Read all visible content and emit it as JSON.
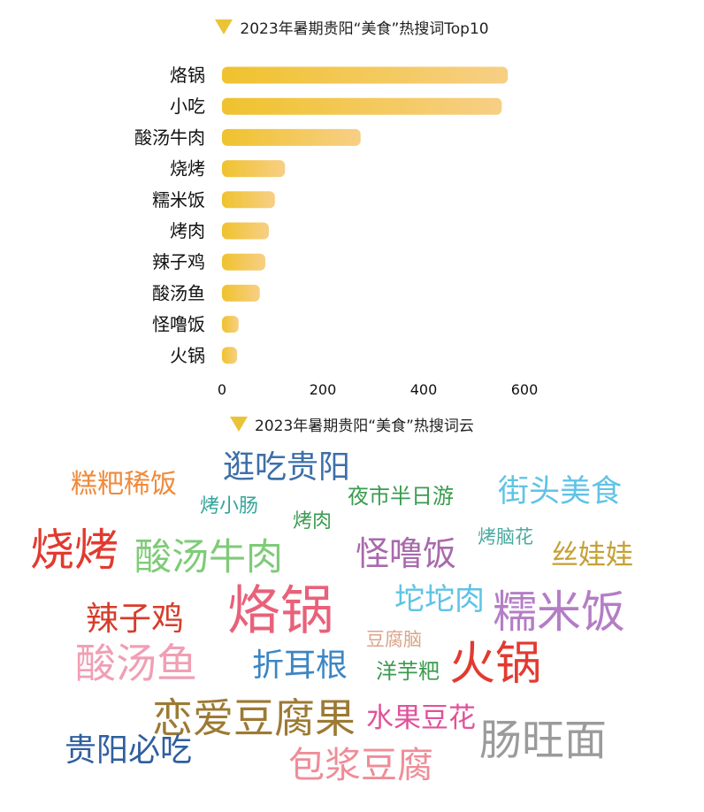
{
  "chart_data": [
    {
      "type": "bar",
      "orientation": "horizontal",
      "title": "2023年暑期贵阳“美食”热搜词Top10",
      "categories": [
        "烙锅",
        "小吃",
        "酸汤牛肉",
        "烧烤",
        "糯米饭",
        "烤肉",
        "辣子鸡",
        "酸汤鱼",
        "怪噜饭",
        "火锅"
      ],
      "values": [
        567,
        555,
        275,
        125,
        105,
        93,
        86,
        75,
        33,
        30
      ],
      "xlim": [
        0,
        600
      ],
      "xticks": [
        0,
        200,
        400,
        600
      ],
      "grid": false,
      "colors": {
        "bar_start": "#f0c22e",
        "bar_end": "#f7cf85"
      }
    },
    {
      "type": "wordcloud",
      "title": "2023年暑期贵阳“美食”热搜词云",
      "words": [
        {
          "text": "逛吃贵阳",
          "weight": 3,
          "color": "#3d6fa8"
        },
        {
          "text": "糕粑稀饭",
          "weight": 2,
          "color": "#ef8a3c"
        },
        {
          "text": "夜市半日游",
          "weight": 2,
          "color": "#3a9b4f"
        },
        {
          "text": "街头美食",
          "weight": 3,
          "color": "#5fc3e6"
        },
        {
          "text": "烤小肠",
          "weight": 1,
          "color": "#33a59a"
        },
        {
          "text": "烤肉",
          "weight": 1,
          "color": "#3a9b4f"
        },
        {
          "text": "烧烤",
          "weight": 4,
          "color": "#e23a30"
        },
        {
          "text": "酸汤牛肉",
          "weight": 4,
          "color": "#7fcb78"
        },
        {
          "text": "怪噜饭",
          "weight": 3,
          "color": "#a86aac"
        },
        {
          "text": "烤脑花",
          "weight": 1,
          "color": "#4caaa0"
        },
        {
          "text": "丝娃娃",
          "weight": 2,
          "color": "#c5a135"
        },
        {
          "text": "辣子鸡",
          "weight": 3,
          "color": "#d63d2c"
        },
        {
          "text": "烙锅",
          "weight": 5,
          "color": "#e8617a"
        },
        {
          "text": "坨坨肉",
          "weight": 3,
          "color": "#5fc3e6"
        },
        {
          "text": "糯米饭",
          "weight": 4,
          "color": "#b47dc6"
        },
        {
          "text": "豆腐脑",
          "weight": 1,
          "color": "#d9a58a"
        },
        {
          "text": "酸汤鱼",
          "weight": 4,
          "color": "#f09fb4"
        },
        {
          "text": "折耳根",
          "weight": 3,
          "color": "#3b86c4"
        },
        {
          "text": "洋芋粑",
          "weight": 1,
          "color": "#3a9b4f"
        },
        {
          "text": "火锅",
          "weight": 4,
          "color": "#e23a30"
        },
        {
          "text": "恋爱豆腐果",
          "weight": 4,
          "color": "#9c7a33"
        },
        {
          "text": "水果豆花",
          "weight": 2,
          "color": "#e0529a"
        },
        {
          "text": "肠旺面",
          "weight": 4,
          "color": "#9b9b9b"
        },
        {
          "text": "贵阳必吃",
          "weight": 3,
          "color": "#2f5f9e"
        },
        {
          "text": "包浆豆腐",
          "weight": 4,
          "color": "#ef8d98"
        }
      ]
    }
  ]
}
